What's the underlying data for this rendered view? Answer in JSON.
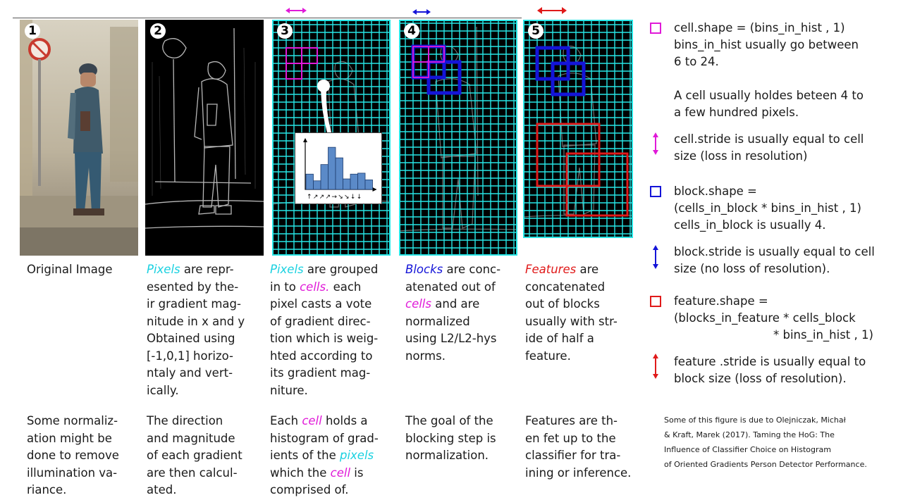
{
  "panels": [
    {
      "id": "1",
      "number": "1"
    },
    {
      "id": "2",
      "number": "2"
    },
    {
      "id": "3",
      "number": "3"
    },
    {
      "id": "4",
      "number": "4"
    },
    {
      "id": "5",
      "number": "5"
    }
  ],
  "captions_top": {
    "c1": [
      "Original Image"
    ],
    "c2": [
      "Pixels",
      " are repr-",
      "esented by the-",
      "ir gradient mag-",
      "nitude in x and y",
      "Obtained using",
      "[-1,0,1] horizo-",
      "ntaly and vert-",
      "ically."
    ],
    "c3": [
      "Pixels",
      " are grouped",
      "in to ",
      "cells.",
      " each",
      "pixel casts a vote",
      "of gradient direc-",
      "tion which is weig-",
      "hted according to",
      "its gradient mag-",
      "niture."
    ],
    "c4": [
      "Blocks",
      " are conc-",
      "atenated out of",
      "cells",
      " and are",
      "normalized",
      "using L2/L2-hys",
      "norms."
    ],
    "c5": [
      "Features",
      " are",
      "concatenated",
      "out of blocks",
      "usually with str-",
      "ide of half a",
      "feature."
    ]
  },
  "captions_bottom": {
    "b1": [
      "Some normaliz-",
      "ation might be",
      "done to remove",
      "illumination va-",
      "riance."
    ],
    "b2": [
      "The direction",
      "and magnitude",
      "of each gradient",
      "are then calcul-",
      "ated."
    ],
    "b3": [
      "Each ",
      "cell",
      " holds a",
      "histogram of grad-",
      "ients of the ",
      "pixels",
      "which the ",
      "cell",
      " is",
      "comprised of."
    ],
    "b4": [
      "The goal of the",
      "blocking step is",
      "normalization."
    ],
    "b5": [
      "Features are th-",
      "en fet up to the",
      "classifier for tra-",
      "ining or inference."
    ]
  },
  "legend": {
    "cell_shape": [
      "cell.shape = (bins_in_hist , 1)",
      "bins_in_hist usually go between",
      "6 to 24."
    ],
    "cell_pixels": [
      "A cell usually holdes beteen 4 to",
      "a few hundred pixels."
    ],
    "cell_stride": [
      "cell.stride is usually equal to cell",
      "size (loss in resolution)"
    ],
    "block_shape": [
      "block.shape =",
      "(cells_in_block * bins_in_hist , 1)",
      "cells_in_block is usually 4."
    ],
    "block_stride": [
      "block.stride is usually equal to cell",
      "size (no loss of resolution)."
    ],
    "feature_shape": [
      "feature.shape =",
      "(blocks_in_feature * cells_block",
      "* bins_in_hist , 1)"
    ],
    "feature_stride": [
      "feature .stride is usually equal to",
      "block size (loss of resolution)."
    ]
  },
  "credit": [
    "Some of this figure is due to Olejniczak, Michał",
    "& Kraft, Marek (2017). Taming the HoG: The",
    "Influence of Classifier Choice on Histogram",
    "of Oriented Gradients Person Detector Performance."
  ],
  "histogram": {
    "values": [
      0.32,
      0.18,
      0.52,
      0.88,
      0.66,
      0.22,
      0.32,
      0.34,
      0.2
    ],
    "direction_glyphs": "↑↗↗↗→↘↘↓↓"
  },
  "colors": {
    "cell": "#e01ad8",
    "block": "#1414d8",
    "feature": "#e01a1a",
    "grid": "#27e6e6",
    "caption_cyan": "#1ad1e0"
  }
}
